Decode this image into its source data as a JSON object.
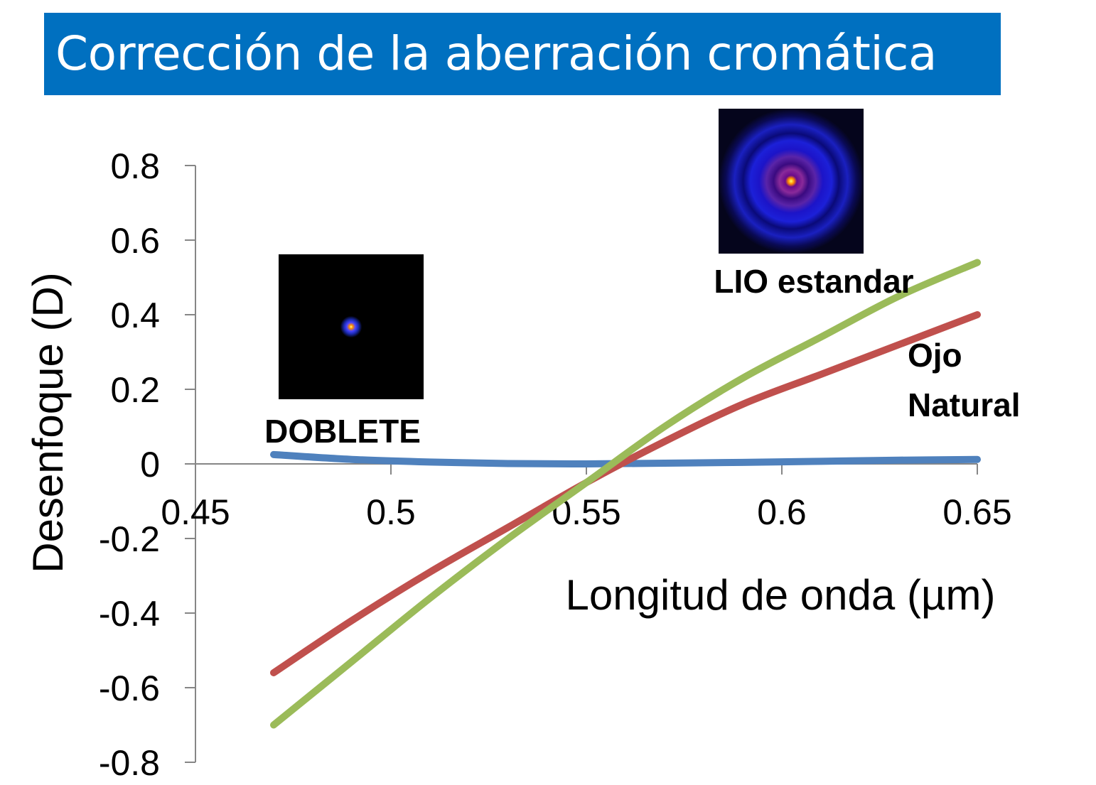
{
  "header": {
    "title": "Corrección de la aberración cromática"
  },
  "chart_data": {
    "type": "line",
    "xlabel": "Longitud de onda (µm)",
    "ylabel": "Desenfoque  (D)",
    "xlim": [
      0.45,
      0.65
    ],
    "ylim": [
      -0.8,
      0.8
    ],
    "x_ticks": [
      "0.45",
      "0.5",
      "0.55",
      "0.6",
      "0.65"
    ],
    "y_ticks": [
      "0.8",
      "0.6",
      "0.4",
      "0.2",
      "0",
      "-0.2",
      "-0.4",
      "-0.6",
      "-0.8"
    ],
    "series": [
      {
        "color": "#4f81bd",
        "x": [
          0.47,
          0.49,
          0.51,
          0.53,
          0.55,
          0.57,
          0.59,
          0.61,
          0.63,
          0.65
        ],
        "y": [
          0.025,
          0.012,
          0.005,
          0.001,
          0.0,
          0.002,
          0.004,
          0.007,
          0.01,
          0.012
        ]
      },
      {
        "color": "#c0504d",
        "x": [
          0.47,
          0.49,
          0.51,
          0.53,
          0.55,
          0.57,
          0.59,
          0.61,
          0.63,
          0.65
        ],
        "y": [
          -0.56,
          -0.42,
          -0.29,
          -0.17,
          -0.05,
          0.06,
          0.16,
          0.24,
          0.32,
          0.4
        ]
      },
      {
        "color": "#9bbb59",
        "x": [
          0.47,
          0.49,
          0.51,
          0.53,
          0.55,
          0.57,
          0.59,
          0.61,
          0.63,
          0.65
        ],
        "y": [
          -0.7,
          -0.53,
          -0.36,
          -0.2,
          -0.05,
          0.1,
          0.23,
          0.34,
          0.45,
          0.54
        ]
      }
    ],
    "annotations": {
      "doblete": "DOBLETE",
      "lio": "LIO estandar",
      "ojo_line1": "Ojo",
      "ojo_line2": "Natural"
    }
  }
}
